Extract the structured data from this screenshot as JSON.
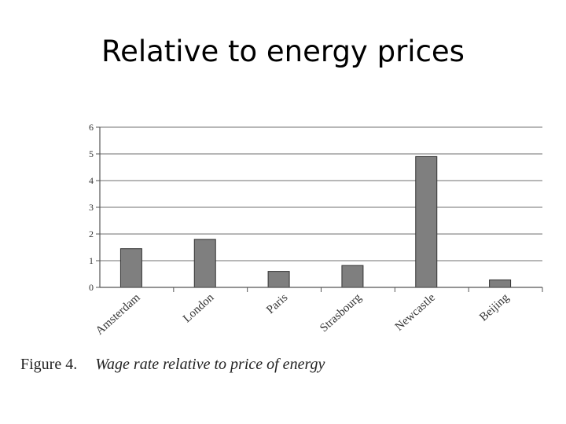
{
  "slide": {
    "title": "Relative to energy prices"
  },
  "caption": {
    "figure_label": "Figure 4.",
    "text": "Wage rate relative to price of energy"
  },
  "chart_data": {
    "type": "bar",
    "categories": [
      "Amsterdam",
      "London",
      "Paris",
      "Strasbourg",
      "Newcastle",
      "Beijing"
    ],
    "values": [
      1.45,
      1.8,
      0.6,
      0.82,
      4.9,
      0.28
    ],
    "yticks": [
      "0",
      "1",
      "2",
      "3",
      "4",
      "5",
      "6"
    ],
    "ylim": [
      0,
      6
    ],
    "grid": true,
    "bar_color": "#7f7f7f",
    "grid_color": "#8c8c8c"
  }
}
